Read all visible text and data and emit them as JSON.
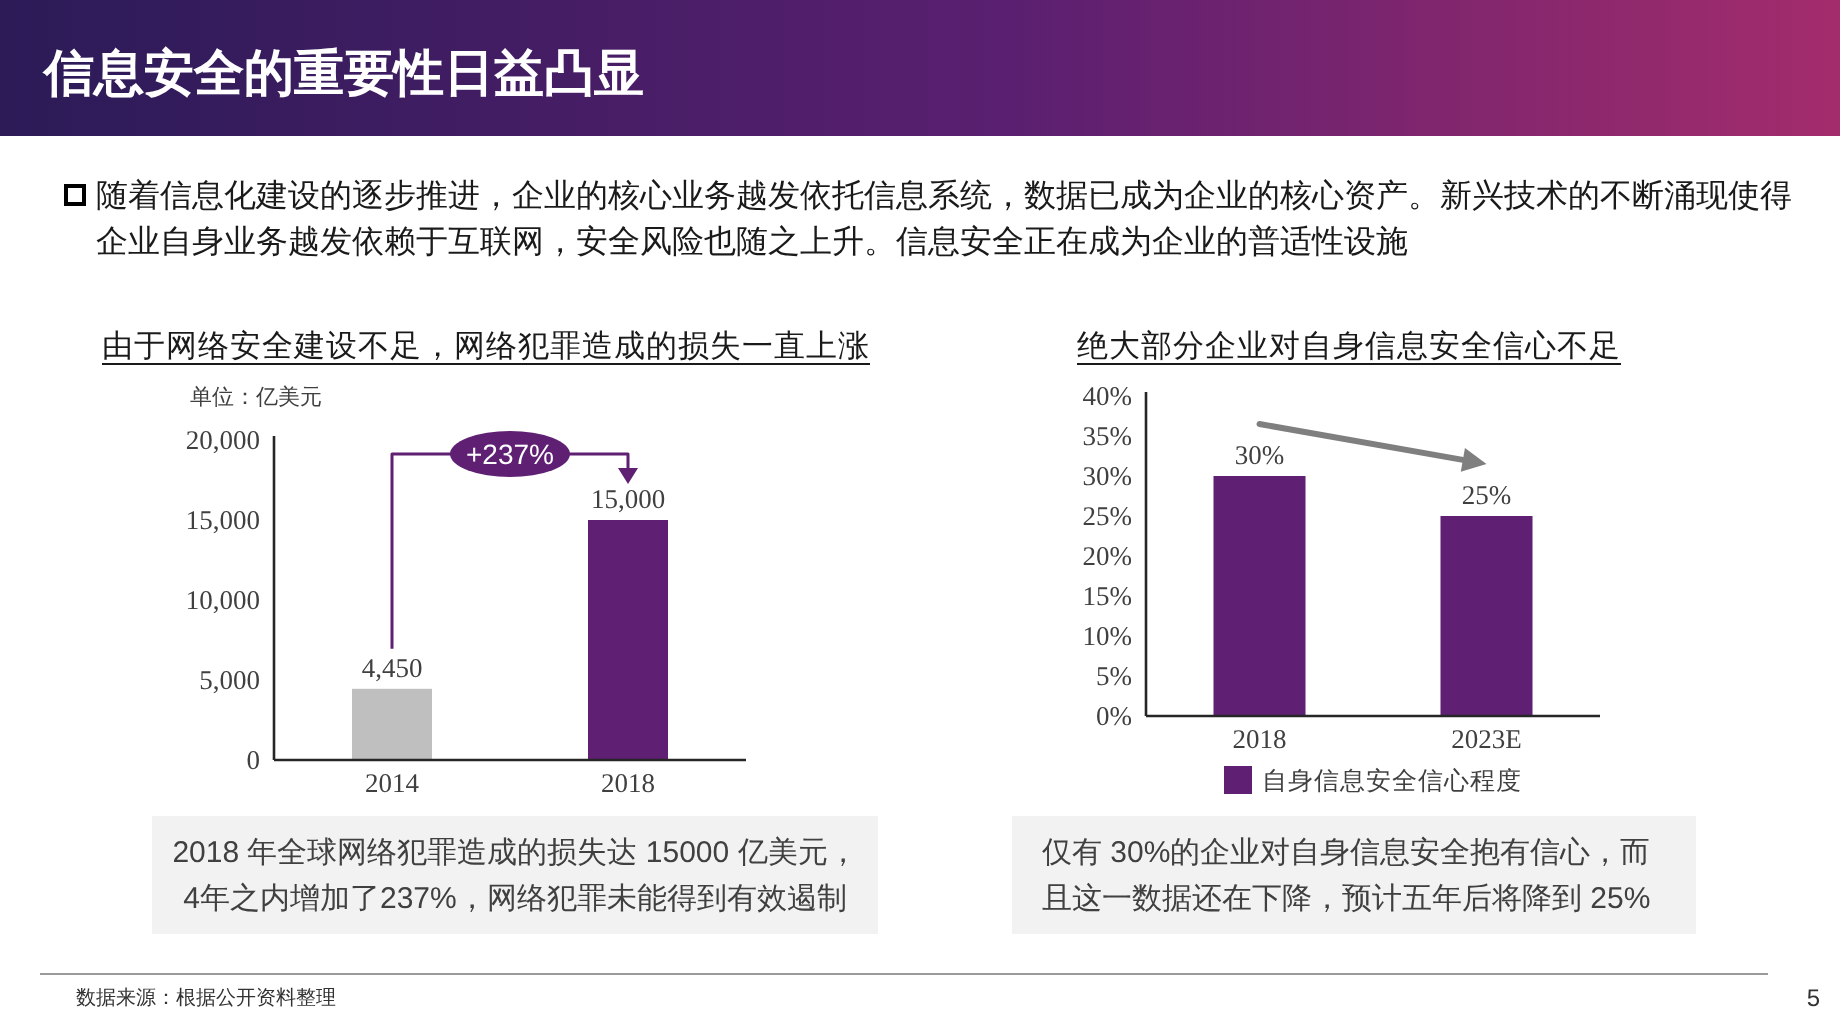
{
  "chart_data": [
    {
      "type": "other",
      "title": "信息安全的重要性日益凸显",
      "annotations": [
        "随着信息化建设的逐步推进，企业的核心业务越发依托信息系统，数据已成为企业的核心资产。新兴技术的不断涌现使得企业自身业务越发依赖于互联网，安全风险也随之上升。信息安全正在成为企业的普适性设施",
        "数据来源：根据公开资料整理",
        "5"
      ]
    },
    {
      "type": "bar",
      "title": "由于网络安全建设不足，网络犯罪造成的损失一直上涨",
      "ylabel": "单位：亿美元",
      "categories": [
        "2014",
        "2018"
      ],
      "values": [
        4450,
        15000
      ],
      "colors": [
        "#bfbfbf",
        "#5f1f73"
      ],
      "value_labels": [
        "4,450",
        "15,000"
      ],
      "ylim": [
        0,
        20000
      ],
      "yticks": [
        0,
        {
          "value": 5000,
          "label": "5,000"
        },
        {
          "value": 10000,
          "label": "10,000"
        },
        {
          "value": 15000,
          "label": "15,000"
        },
        {
          "value": 20000,
          "label": "20,000"
        }
      ],
      "annotations": [
        "+237%",
        "2018 年全球网络犯罪造成的损失达 15000 亿美元，4年之内增加了237%，网络犯罪未能得到有效遏制"
      ]
    },
    {
      "type": "bar",
      "title": "绝大部分企业对自身信息安全信心不足",
      "categories": [
        "2018",
        "2023E"
      ],
      "series": [
        {
          "name": "自身信息安全信心程度",
          "color": "#5f1f73",
          "values": [
            30,
            25
          ],
          "value_labels": [
            "30%",
            "25%"
          ]
        }
      ],
      "ylim": [
        0,
        40
      ],
      "yticks": [
        {
          "value": 0,
          "label": "0%"
        },
        {
          "value": 5,
          "label": "5%"
        },
        {
          "value": 10,
          "label": "10%"
        },
        {
          "value": 15,
          "label": "15%"
        },
        {
          "value": 20,
          "label": "20%"
        },
        {
          "value": 25,
          "label": "25%"
        },
        {
          "value": 30,
          "label": "30%"
        },
        {
          "value": 35,
          "label": "35%"
        },
        {
          "value": 40,
          "label": "40%"
        }
      ],
      "legend": "bottom",
      "annotations": [
        "仅有 30%的企业对自身信息安全抱有信心，而且这一数据还在下降，预计五年后将降到 25%"
      ]
    }
  ]
}
